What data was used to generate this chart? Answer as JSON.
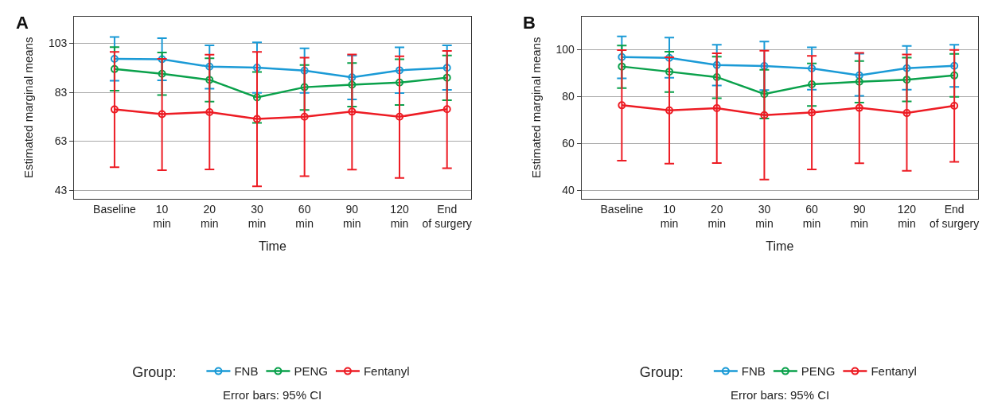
{
  "chart_data": [
    {
      "type": "line",
      "title": "A",
      "xlabel": "Time",
      "ylabel": "Estimated marginal means",
      "legend_title": "Group:",
      "annotations": [
        "Error bars: 95% CI"
      ],
      "categories": [
        "Baseline",
        "10\nmin",
        "20\nmin",
        "30\nmin",
        "60\nmin",
        "90\nmin",
        "120\nmin",
        "End\nof surgery"
      ],
      "ylim": [
        39.5,
        114
      ],
      "yticks": [
        43,
        63,
        83,
        103
      ],
      "grid": "y",
      "legend": "bottom",
      "marker": "circle",
      "line_style": "solid",
      "series": [
        {
          "name": "FNB",
          "color": "#1a9ad6",
          "values": [
            96.7,
            96.5,
            93.5,
            93.1,
            91.9,
            89.1,
            92.0,
            93.0
          ],
          "errors": [
            [
              87.7,
              105.6
            ],
            [
              87.9,
              105.1
            ],
            [
              84.5,
              102.2
            ],
            [
              82.8,
              103.4
            ],
            [
              82.8,
              101.0
            ],
            [
              80.1,
              98.1
            ],
            [
              82.7,
              101.4
            ],
            [
              84.0,
              102.2
            ]
          ]
        },
        {
          "name": "PENG",
          "color": "#0aa14b",
          "values": [
            92.5,
            90.6,
            88.1,
            80.9,
            85.1,
            86.1,
            87.0,
            89.0
          ],
          "errors": [
            [
              83.7,
              101.5
            ],
            [
              81.9,
              99.3
            ],
            [
              79.2,
              96.9
            ],
            [
              70.5,
              91.3
            ],
            [
              75.8,
              94.2
            ],
            [
              77.2,
              95.0
            ],
            [
              77.8,
              96.5
            ],
            [
              79.8,
              98.1
            ]
          ]
        },
        {
          "name": "Fentanyl",
          "color": "#ed1c24",
          "values": [
            76.0,
            74.1,
            74.9,
            72.1,
            73.0,
            75.1,
            73.0,
            76.1
          ],
          "errors": [
            [
              52.4,
              99.5
            ],
            [
              51.2,
              96.7
            ],
            [
              51.5,
              98.4
            ],
            [
              44.6,
              99.5
            ],
            [
              48.7,
              97.2
            ],
            [
              51.4,
              98.5
            ],
            [
              48.0,
              97.7
            ],
            [
              52.0,
              99.9
            ]
          ]
        }
      ]
    },
    {
      "type": "line",
      "title": "B",
      "xlabel": "Time",
      "ylabel": "Estimated marginal means",
      "legend_title": "Group:",
      "annotations": [
        "Error bars: 95% CI"
      ],
      "categories": [
        "Baseline",
        "10\nmin",
        "20\nmin",
        "30\nmin",
        "60\nmin",
        "90\nmin",
        "120\nmin",
        "End\nof surgery"
      ],
      "ylim": [
        36.4,
        114
      ],
      "yticks": [
        40,
        60,
        80,
        100
      ],
      "grid": "y",
      "legend": "bottom",
      "marker": "circle",
      "line_style": "solid",
      "series": [
        {
          "name": "FNB",
          "color": "#1a9ad6",
          "values": [
            96.7,
            96.4,
            93.3,
            92.9,
            91.9,
            88.9,
            92.0,
            93.0
          ],
          "errors": [
            [
              87.7,
              105.5
            ],
            [
              87.9,
              105.0
            ],
            [
              84.6,
              102.0
            ],
            [
              82.7,
              103.3
            ],
            [
              82.8,
              100.9
            ],
            [
              80.2,
              98.2
            ],
            [
              82.8,
              101.5
            ],
            [
              84.0,
              102.0
            ]
          ]
        },
        {
          "name": "PENG",
          "color": "#0aa14b",
          "values": [
            92.7,
            90.5,
            88.2,
            81.0,
            85.1,
            86.2,
            87.1,
            88.9
          ],
          "errors": [
            [
              83.5,
              101.6
            ],
            [
              81.8,
              99.0
            ],
            [
              79.2,
              96.9
            ],
            [
              70.6,
              91.3
            ],
            [
              75.9,
              94.0
            ],
            [
              77.3,
              95.0
            ],
            [
              77.8,
              96.5
            ],
            [
              79.8,
              98.1
            ]
          ]
        },
        {
          "name": "Fentanyl",
          "color": "#ed1c24",
          "values": [
            76.2,
            74.0,
            75.0,
            72.0,
            73.1,
            75.1,
            72.9,
            76.0
          ],
          "errors": [
            [
              52.6,
              99.7
            ],
            [
              51.3,
              96.6
            ],
            [
              51.6,
              98.3
            ],
            [
              44.6,
              99.4
            ],
            [
              48.9,
              97.2
            ],
            [
              51.5,
              98.5
            ],
            [
              48.3,
              97.8
            ],
            [
              52.1,
              99.8
            ]
          ]
        }
      ]
    }
  ]
}
